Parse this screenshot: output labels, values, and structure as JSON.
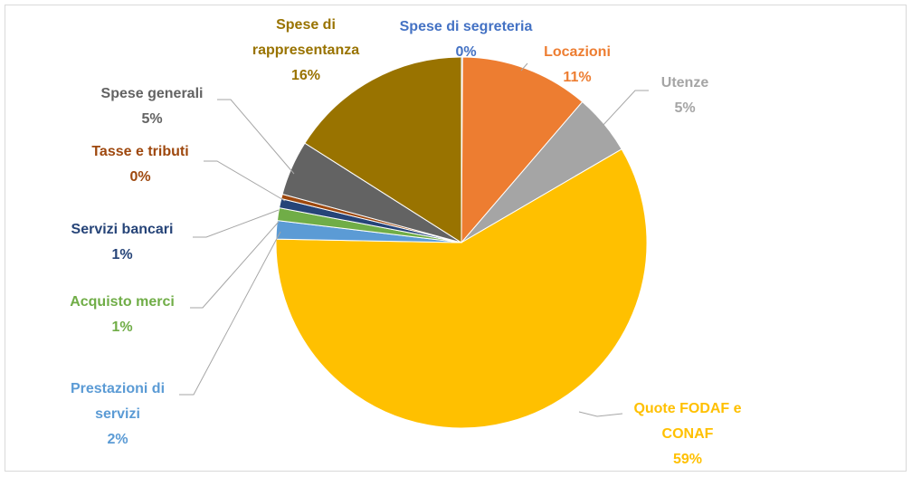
{
  "chart_data": {
    "type": "pie",
    "categories": [
      "Spese di segreteria",
      "Locazioni",
      "Utenze",
      "Quote FODAF e CONAF",
      "Prestazioni di servizi",
      "Acquisto merci",
      "Servizi bancari",
      "Tasse e tributi",
      "Spese generali",
      "Spese di rappresentanza"
    ],
    "values": [
      0.1,
      11.2,
      5.3,
      58.7,
      1.6,
      1.1,
      0.8,
      0.4,
      4.8,
      16.0
    ],
    "value_labels": [
      "0%",
      "11%",
      "5%",
      "59%",
      "2%",
      "1%",
      "1%",
      "0%",
      "5%",
      "16%"
    ],
    "colors": [
      "#4472c4",
      "#ed7d31",
      "#a5a5a5",
      "#ffc000",
      "#5b9bd5",
      "#70ad47",
      "#264478",
      "#9e480e",
      "#636363",
      "#997300"
    ]
  }
}
